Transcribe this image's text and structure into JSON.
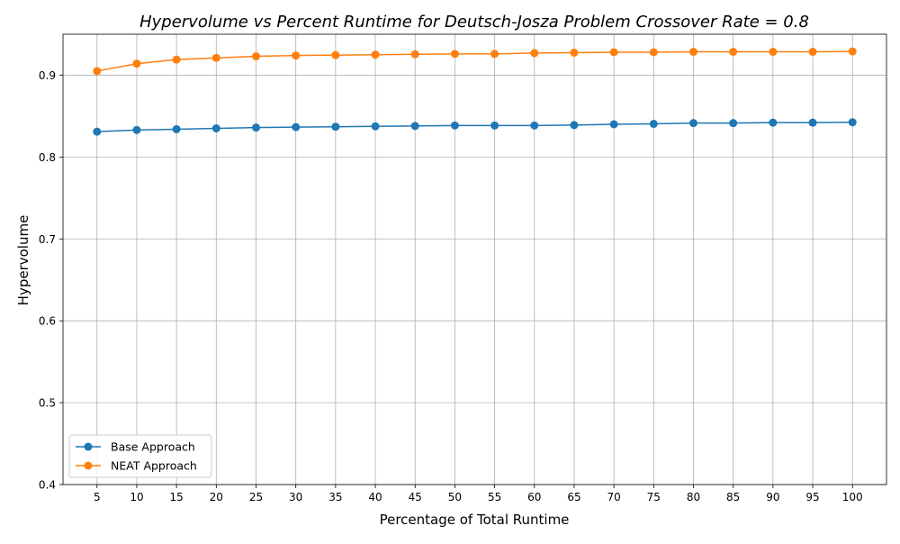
{
  "chart_data": {
    "type": "line",
    "title": "Hypervolume vs Percent Runtime for Deutsch-Josza Problem Crossover Rate = 0.8",
    "xlabel": "Percentage of Total Runtime",
    "ylabel": "Hypervolume",
    "x": [
      5,
      10,
      15,
      20,
      25,
      30,
      35,
      40,
      45,
      50,
      55,
      60,
      65,
      70,
      75,
      80,
      85,
      90,
      95,
      100
    ],
    "x_tick_labels": [
      "5",
      "10",
      "15",
      "20",
      "25",
      "30",
      "35",
      "40",
      "45",
      "50",
      "55",
      "60",
      "65",
      "70",
      "75",
      "80",
      "85",
      "90",
      "95",
      "100"
    ],
    "ylim": [
      0.4,
      0.95
    ],
    "y_ticks": [
      0.4,
      0.5,
      0.6,
      0.7,
      0.8,
      0.9
    ],
    "y_tick_labels": [
      "0.4",
      "0.5",
      "0.6",
      "0.7",
      "0.8",
      "0.9"
    ],
    "grid": true,
    "legend_position": "lower-left",
    "series": [
      {
        "name": "Base Approach",
        "color": "#1f77b4",
        "values": [
          0.831,
          0.833,
          0.834,
          0.835,
          0.836,
          0.8365,
          0.837,
          0.8375,
          0.838,
          0.8385,
          0.8385,
          0.8385,
          0.839,
          0.84,
          0.8405,
          0.8415,
          0.8415,
          0.842,
          0.842,
          0.8425
        ]
      },
      {
        "name": "NEAT Approach",
        "color": "#ff7f0e",
        "values": [
          0.905,
          0.914,
          0.919,
          0.921,
          0.923,
          0.924,
          0.9245,
          0.925,
          0.9255,
          0.926,
          0.926,
          0.927,
          0.9275,
          0.928,
          0.928,
          0.9285,
          0.9285,
          0.9285,
          0.9285,
          0.929
        ]
      }
    ]
  }
}
